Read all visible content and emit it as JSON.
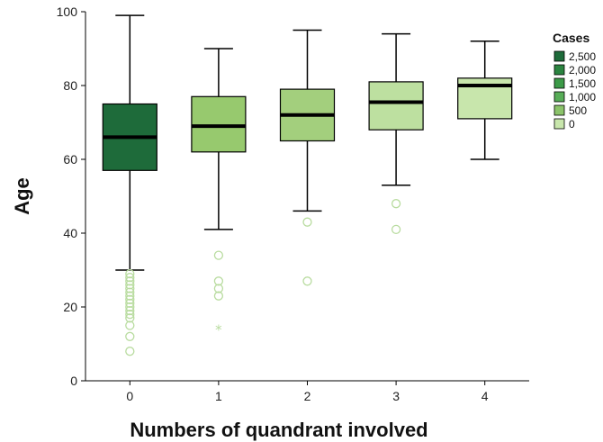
{
  "chart_data": {
    "type": "boxplot",
    "xlabel": "Numbers of quandrant involved",
    "ylabel": "Age",
    "ylim": [
      0,
      100
    ],
    "yticks": [
      0,
      20,
      40,
      60,
      80,
      100
    ],
    "categories": [
      "0",
      "1",
      "2",
      "3",
      "4"
    ],
    "boxes": [
      {
        "category": "0",
        "whisker_low": 30,
        "q1": 57,
        "median": 66,
        "q3": 75,
        "whisker_high": 99,
        "color": "#1e6b3a",
        "outliers": [
          29,
          28,
          27,
          26,
          25,
          24,
          23,
          22,
          21,
          20,
          19,
          18,
          17,
          15,
          12,
          8
        ],
        "extremes": []
      },
      {
        "category": "1",
        "whisker_low": 41,
        "q1": 62,
        "median": 69,
        "q3": 77,
        "whisker_high": 90,
        "color": "#97c96e",
        "outliers": [
          34,
          27,
          25,
          23
        ],
        "extremes": [
          14
        ]
      },
      {
        "category": "2",
        "whisker_low": 46,
        "q1": 65,
        "median": 72,
        "q3": 79,
        "whisker_high": 95,
        "color": "#a3cf7d",
        "outliers": [
          43,
          27
        ],
        "extremes": []
      },
      {
        "category": "3",
        "whisker_low": 53,
        "q1": 68,
        "median": 75.5,
        "q3": 81,
        "whisker_high": 94,
        "color": "#bde0a0",
        "outliers": [
          48,
          41
        ],
        "extremes": []
      },
      {
        "category": "4",
        "whisker_low": 60,
        "q1": 71,
        "median": 80,
        "q3": 82,
        "whisker_high": 92,
        "color": "#c8e6ac",
        "outliers": [],
        "extremes": []
      }
    ],
    "legend": {
      "title": "Cases",
      "position": "top-right",
      "items": [
        {
          "label": "2,500",
          "color": "#1e6b3a"
        },
        {
          "label": "2,000",
          "color": "#2b8440"
        },
        {
          "label": "1,500",
          "color": "#3c9a48"
        },
        {
          "label": "1,000",
          "color": "#58ad58"
        },
        {
          "label": "500",
          "color": "#8bc36a"
        },
        {
          "label": "0",
          "color": "#c8e6ac"
        }
      ]
    },
    "grid": false
  }
}
